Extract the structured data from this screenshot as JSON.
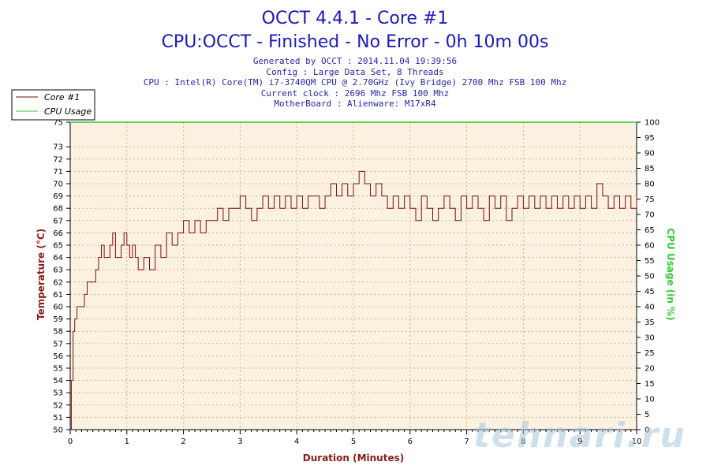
{
  "header": {
    "title": "OCCT 4.4.1 - Core #1",
    "subtitle": "CPU:OCCT - Finished - No Error - 0h 10m 00s",
    "info_lines": [
      "Generated by OCCT : 2014.11.04 19:39:56",
      "Config : Large Data Set, 8 Threads",
      "CPU : Intel(R) Core(TM) i7-3740QM CPU @ 2.70GHz (Ivy Bridge) 2700 Mhz FSB 100 Mhz",
      "Current clock : 2696 Mhz FSB 100 Mhz",
      "MotherBoard : Alienware: M17xR4"
    ]
  },
  "watermark": "tehnari.ru",
  "colors": {
    "temp_line": "#7a1010",
    "cpu_line": "#2ecc2e",
    "plot_bg": "#fbf1e1",
    "grid": "#d9b38c",
    "title": "#1a1ab8",
    "info": "#2525b0"
  },
  "chart_data": {
    "type": "line",
    "title": "OCCT 4.4.1 - Core #1",
    "subtitle": "CPU:OCCT - Finished - No Error - 0h 10m 00s",
    "xlabel": "Duration (Minutes)",
    "ylabel_left": "Temperature (°C)",
    "ylabel_right": "CPU Usage (in %)",
    "xlim": [
      0,
      10
    ],
    "ylim_left": [
      50,
      75
    ],
    "ylim_right": [
      0,
      100
    ],
    "x_ticks": [
      "0",
      "1",
      "2",
      "3",
      "4",
      "5",
      "6",
      "7",
      "8",
      "9",
      "10"
    ],
    "y_left_ticks": [
      "50",
      "51",
      "52",
      "53",
      "54",
      "55",
      "56",
      "57",
      "58",
      "59",
      "60",
      "61",
      "62",
      "63",
      "64",
      "65",
      "66",
      "67",
      "68",
      "69",
      "70",
      "71",
      "72",
      "73",
      "75"
    ],
    "y_right_ticks": [
      "0",
      "5",
      "10",
      "15",
      "20",
      "25",
      "30",
      "35",
      "40",
      "45",
      "50",
      "55",
      "60",
      "65",
      "70",
      "75",
      "80",
      "85",
      "90",
      "95",
      "100"
    ],
    "grid": true,
    "legend_position": "top-left",
    "series": [
      {
        "name": "Core #1",
        "axis": "left",
        "color": "#7a1010",
        "x": [
          0.0,
          0.02,
          0.05,
          0.08,
          0.12,
          0.18,
          0.25,
          0.3,
          0.35,
          0.45,
          0.5,
          0.55,
          0.6,
          0.7,
          0.75,
          0.8,
          0.9,
          0.95,
          1.0,
          1.05,
          1.1,
          1.15,
          1.2,
          1.3,
          1.4,
          1.5,
          1.6,
          1.7,
          1.8,
          1.9,
          2.0,
          2.1,
          2.2,
          2.3,
          2.4,
          2.5,
          2.6,
          2.7,
          2.8,
          2.9,
          3.0,
          3.1,
          3.2,
          3.3,
          3.4,
          3.5,
          3.6,
          3.7,
          3.8,
          3.9,
          4.0,
          4.1,
          4.2,
          4.3,
          4.4,
          4.5,
          4.6,
          4.7,
          4.8,
          4.9,
          5.0,
          5.1,
          5.2,
          5.3,
          5.4,
          5.5,
          5.6,
          5.7,
          5.8,
          5.9,
          6.0,
          6.1,
          6.2,
          6.3,
          6.4,
          6.5,
          6.6,
          6.7,
          6.8,
          6.9,
          7.0,
          7.1,
          7.2,
          7.3,
          7.4,
          7.5,
          7.6,
          7.7,
          7.8,
          7.9,
          8.0,
          8.1,
          8.2,
          8.3,
          8.4,
          8.5,
          8.6,
          8.7,
          8.8,
          8.9,
          9.0,
          9.1,
          9.2,
          9.3,
          9.4,
          9.5,
          9.6,
          9.7,
          9.8,
          9.9,
          10.0
        ],
        "values": [
          50,
          54,
          58,
          59,
          60,
          60,
          61,
          62,
          62,
          63,
          64,
          65,
          64,
          65,
          66,
          64,
          65,
          66,
          65,
          64,
          65,
          64,
          63,
          64,
          63,
          65,
          64,
          66,
          65,
          66,
          67,
          66,
          67,
          66,
          67,
          67,
          68,
          67,
          68,
          68,
          69,
          68,
          67,
          68,
          69,
          68,
          69,
          68,
          69,
          68,
          69,
          68,
          69,
          69,
          68,
          69,
          70,
          69,
          70,
          69,
          70,
          71,
          70,
          69,
          70,
          69,
          68,
          69,
          68,
          69,
          68,
          67,
          69,
          68,
          67,
          68,
          69,
          68,
          67,
          69,
          68,
          69,
          68,
          67,
          69,
          68,
          69,
          67,
          68,
          69,
          68,
          69,
          68,
          69,
          68,
          69,
          68,
          69,
          68,
          69,
          68,
          69,
          68,
          70,
          69,
          68,
          69,
          68,
          69,
          68,
          69
        ]
      },
      {
        "name": "CPU Usage",
        "axis": "right",
        "color": "#2ecc2e",
        "x": [
          0,
          10
        ],
        "values": [
          100,
          100
        ]
      }
    ]
  }
}
